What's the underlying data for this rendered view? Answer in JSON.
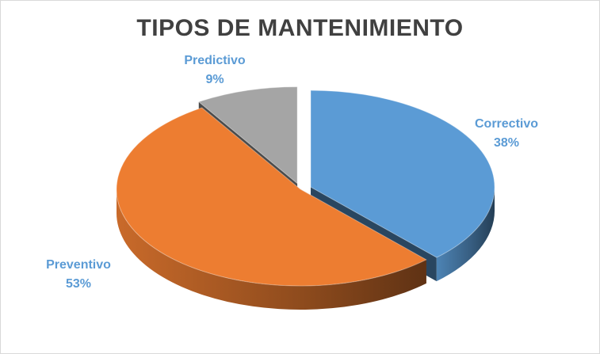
{
  "chart_data": {
    "type": "pie",
    "title": "TIPOS DE MANTENIMIENTO",
    "categories": [
      "Correctivo",
      "Preventivo",
      "Predictivo"
    ],
    "values": [
      38,
      53,
      9
    ],
    "labels": [
      {
        "name": "Correctivo",
        "value": "38%"
      },
      {
        "name": "Preventivo",
        "value": "53%"
      },
      {
        "name": "Predictivo",
        "value": "9%"
      }
    ],
    "colors": [
      "#5B9BD5",
      "#ED7D31",
      "#A5A5A5"
    ],
    "label_colors": [
      "#5B9BD5",
      "#5B9BD5",
      "#5B9BD5"
    ],
    "exploded": [
      "Correctivo",
      "Predictivo"
    ],
    "legend": "none"
  }
}
